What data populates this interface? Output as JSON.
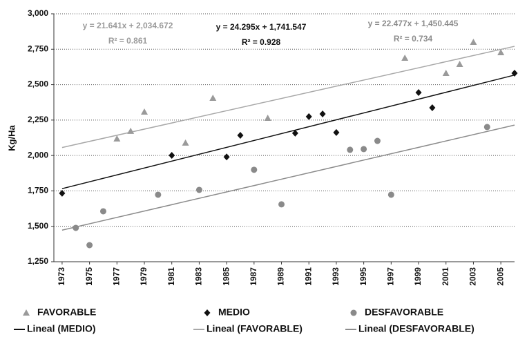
{
  "chart_data": {
    "type": "scatter",
    "y_label": "Kg/Ha",
    "xlim": [
      1972.4,
      2006
    ],
    "xticks": [
      1973,
      1975,
      1977,
      1979,
      1981,
      1983,
      1985,
      1987,
      1989,
      1991,
      1993,
      1995,
      1997,
      1999,
      2001,
      2003,
      2005
    ],
    "ylim": [
      1250,
      3000
    ],
    "yticks": [
      {
        "value": 1250,
        "label": "1,250"
      },
      {
        "value": 1500,
        "label": "1,500"
      },
      {
        "value": 1750,
        "label": "1,750"
      },
      {
        "value": 2000,
        "label": "2,000"
      },
      {
        "value": 2250,
        "label": "2,250"
      },
      {
        "value": 2500,
        "label": "2,500"
      },
      {
        "value": 2750,
        "label": "2,750"
      },
      {
        "value": 3000,
        "label": "3,000"
      }
    ],
    "grid": true,
    "legend": "bottom",
    "series": [
      {
        "name": "FAVORABLE",
        "marker": "triangle",
        "color": "#9a9a9a",
        "x": [
          1977,
          1978,
          1979,
          1982,
          1984,
          1988,
          1998,
          2001,
          2002,
          2003,
          2005
        ],
        "values": [
          2118,
          2172,
          2308,
          2089,
          2405,
          2264,
          2688,
          2581,
          2644,
          2800,
          2727
        ]
      },
      {
        "name": "MEDIO",
        "marker": "diamond",
        "color": "#111111",
        "x": [
          1973,
          1981,
          1985,
          1986,
          1990,
          1991,
          1992,
          1993,
          1999,
          2000,
          2006
        ],
        "values": [
          1733,
          2001,
          1990,
          2142,
          2157,
          2274,
          2293,
          2162,
          2444,
          2337,
          2581
        ]
      },
      {
        "name": "DESFAVORABLE",
        "marker": "circle",
        "color": "#8a8a8a",
        "x": [
          1974,
          1975,
          1976,
          1980,
          1983,
          1987,
          1989,
          1994,
          1995,
          1996,
          1997,
          2004
        ],
        "values": [
          1489,
          1367,
          1606,
          1723,
          1757,
          1899,
          1655,
          2040,
          2045,
          2103,
          1723,
          2201
        ]
      }
    ],
    "trendlines": [
      {
        "name": "Lineal (MEDIO)",
        "color": "#111111",
        "x": [
          1973,
          2006
        ],
        "values": [
          1765.8,
          2567.6
        ],
        "equation": "y = 24.295x + 1,741.547",
        "r2": "R² = 0.928"
      },
      {
        "name": "Lineal (FAVORABLE)",
        "color": "#a8a8a8",
        "x": [
          1973,
          2006
        ],
        "values": [
          2056.3,
          2770.5
        ],
        "equation": "y = 21.641x + 2,034.672",
        "r2": "R² = 0.861"
      },
      {
        "name": "Lineal (DESFAVORABLE)",
        "color": "#8c8c8c",
        "x": [
          1973,
          2006
        ],
        "values": [
          1472.9,
          2214.7
        ],
        "equation": "y = 22.477x + 1,450.445",
        "r2": "R² = 0.734"
      }
    ]
  }
}
